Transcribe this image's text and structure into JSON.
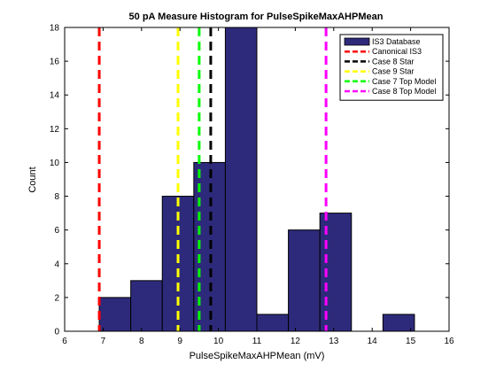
{
  "chart_data": {
    "type": "bar",
    "title": "50 pA Measure Histogram for PulseSpikeMaxAHPMean",
    "xlabel": "PulseSpikeMaxAHPMean (mV)",
    "ylabel": "Count",
    "xlim": [
      6,
      16
    ],
    "ylim": [
      0,
      18
    ],
    "xticks": [
      "6",
      "7",
      "8",
      "9",
      "10",
      "11",
      "12",
      "13",
      "14",
      "15",
      "16"
    ],
    "yticks": [
      "0",
      "2",
      "4",
      "6",
      "8",
      "10",
      "12",
      "14",
      "16",
      "18"
    ],
    "bar_color": "#2e2a7b",
    "bins": [
      {
        "x0": 6.9,
        "x1": 7.72,
        "count": 2
      },
      {
        "x0": 7.72,
        "x1": 8.54,
        "count": 3
      },
      {
        "x0": 8.54,
        "x1": 9.36,
        "count": 8
      },
      {
        "x0": 9.36,
        "x1": 9.36,
        "count": 0
      },
      {
        "x0": 9.36,
        "x1": 10.18,
        "count": 10
      },
      {
        "x0": 10.18,
        "x1": 11.0,
        "count": 18
      },
      {
        "x0": 11.0,
        "x1": 11.82,
        "count": 1
      },
      {
        "x0": 11.82,
        "x1": 12.64,
        "count": 6
      },
      {
        "x0": 12.64,
        "x1": 13.46,
        "count": 7
      },
      {
        "x0": 13.46,
        "x1": 14.28,
        "count": 0
      },
      {
        "x0": 14.28,
        "x1": 15.1,
        "count": 1
      }
    ],
    "vlines": [
      {
        "name": "Canonical IS3",
        "x": 6.9,
        "color": "#ff0000"
      },
      {
        "name": "Case 8 Star",
        "x": 9.8,
        "color": "#000000"
      },
      {
        "name": "Case 9 Star",
        "x": 8.95,
        "color": "#ffff00"
      },
      {
        "name": "Case 7 Top Model",
        "x": 9.5,
        "color": "#00ff00"
      },
      {
        "name": "Case 8 Top Model",
        "x": 12.8,
        "color": "#ff00ff"
      }
    ],
    "legend": {
      "placement": "top-right",
      "entries": [
        "IS3 Database",
        "Canonical IS3",
        "Case 8 Star",
        "Case 9 Star",
        "Case 7 Top Model",
        "Case 8 Top Model"
      ]
    }
  }
}
